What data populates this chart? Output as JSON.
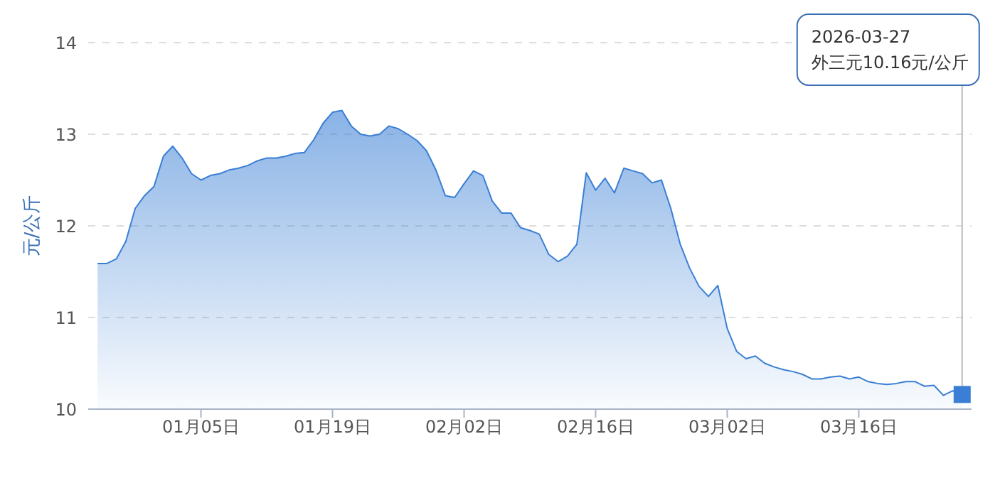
{
  "chart_data": {
    "type": "area",
    "ylabel": "元/公斤",
    "x": [
      "2025-12-25",
      "2025-12-26",
      "2025-12-27",
      "2025-12-28",
      "2025-12-29",
      "2025-12-30",
      "2025-12-31",
      "2026-01-01",
      "2026-01-02",
      "2026-01-03",
      "2026-01-04",
      "2026-01-05",
      "2026-01-06",
      "2026-01-07",
      "2026-01-08",
      "2026-01-09",
      "2026-01-10",
      "2026-01-11",
      "2026-01-12",
      "2026-01-13",
      "2026-01-14",
      "2026-01-15",
      "2026-01-16",
      "2026-01-17",
      "2026-01-18",
      "2026-01-19",
      "2026-01-20",
      "2026-01-21",
      "2026-01-22",
      "2026-01-23",
      "2026-01-24",
      "2026-01-25",
      "2026-01-26",
      "2026-01-27",
      "2026-01-28",
      "2026-01-29",
      "2026-01-30",
      "2026-01-31",
      "2026-02-01",
      "2026-02-02",
      "2026-02-03",
      "2026-02-04",
      "2026-02-05",
      "2026-02-06",
      "2026-02-07",
      "2026-02-08",
      "2026-02-09",
      "2026-02-10",
      "2026-02-11",
      "2026-02-12",
      "2026-02-13",
      "2026-02-14",
      "2026-02-15",
      "2026-02-16",
      "2026-02-17",
      "2026-02-18",
      "2026-02-19",
      "2026-02-20",
      "2026-02-21",
      "2026-02-22",
      "2026-02-23",
      "2026-02-24",
      "2026-02-25",
      "2026-02-26",
      "2026-02-27",
      "2026-02-28",
      "2026-03-01",
      "2026-03-02",
      "2026-03-03",
      "2026-03-04",
      "2026-03-05",
      "2026-03-06",
      "2026-03-07",
      "2026-03-08",
      "2026-03-09",
      "2026-03-10",
      "2026-03-11",
      "2026-03-12",
      "2026-03-13",
      "2026-03-14",
      "2026-03-15",
      "2026-03-16",
      "2026-03-17",
      "2026-03-18",
      "2026-03-19",
      "2026-03-20",
      "2026-03-21",
      "2026-03-22",
      "2026-03-23",
      "2026-03-24",
      "2026-03-25",
      "2026-03-26",
      "2026-03-27"
    ],
    "series": [
      {
        "color": "#3a7fd5",
        "values": [
          11.59,
          11.59,
          11.64,
          11.83,
          12.19,
          12.33,
          12.43,
          12.76,
          12.87,
          12.74,
          12.57,
          12.5,
          12.55,
          12.57,
          12.61,
          12.63,
          12.66,
          12.71,
          12.74,
          12.74,
          12.76,
          12.79,
          12.8,
          12.94,
          13.12,
          13.24,
          13.26,
          13.09,
          13.0,
          12.98,
          13.0,
          13.09,
          13.06,
          13.0,
          12.93,
          12.82,
          12.61,
          12.33,
          12.31,
          12.46,
          12.6,
          12.55,
          12.27,
          12.14,
          12.14,
          11.98,
          11.95,
          11.91,
          11.69,
          11.61,
          11.67,
          11.8,
          12.58,
          12.39,
          12.52,
          12.36,
          12.63,
          12.6,
          12.57,
          12.47,
          12.5,
          12.19,
          11.8,
          11.54,
          11.34,
          11.23,
          11.35,
          10.88,
          10.63,
          10.55,
          10.58,
          10.5,
          10.46,
          10.43,
          10.41,
          10.38,
          10.33,
          10.33,
          10.35,
          10.36,
          10.33,
          10.35,
          10.3,
          10.28,
          10.27,
          10.28,
          10.3,
          10.3,
          10.25,
          10.26,
          10.15,
          10.2,
          10.16
        ]
      }
    ],
    "xlim": [
      "2025-12-24",
      "2026-03-28"
    ],
    "xticks": [
      {
        "value": "2026-01-05",
        "label": "01月05日"
      },
      {
        "value": "2026-01-19",
        "label": "01月19日"
      },
      {
        "value": "2026-02-02",
        "label": "02月02日"
      },
      {
        "value": "2026-02-16",
        "label": "02月16日"
      },
      {
        "value": "2026-03-02",
        "label": "03月02日"
      },
      {
        "value": "2026-03-16",
        "label": "03月16日"
      }
    ],
    "ylim": [
      10,
      14
    ],
    "yticks": [
      10,
      11,
      12,
      13,
      14
    ],
    "grid": "y",
    "line_style": "solid",
    "marker": "none",
    "annotations": [
      {
        "text": "2026-03-27\n外三元10.16元/公斤",
        "x": "2026-03-27",
        "y": 10.16
      }
    ]
  }
}
